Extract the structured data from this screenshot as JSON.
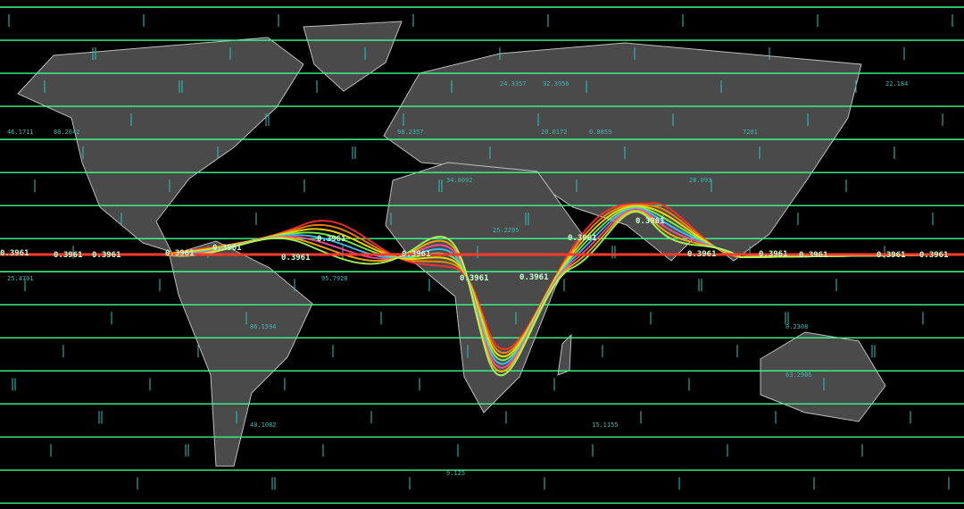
{
  "overlay": {
    "highlight_labels": [
      "0.3961",
      "0.3961",
      "0.3961",
      "0.3961",
      "0.3961",
      "0.3961",
      "0.3961",
      "0.3961",
      "0.3961",
      "0.3961",
      "0.3961",
      "0.3961",
      "0.3961",
      "0.3961",
      "0.3961",
      "0.3961",
      "0.3961"
    ],
    "readouts": [
      "24.3357",
      "32.3956",
      "22.184",
      "46.1711",
      "80.2642",
      "98.2357",
      "20.0172",
      "0.8859",
      "7281",
      "34.0092",
      "28.093",
      "25.2205",
      "25.4701",
      "95.7928",
      "86.1594",
      "0.2308",
      "63.2906",
      "15.1155",
      "40.1082",
      "9.125"
    ]
  }
}
